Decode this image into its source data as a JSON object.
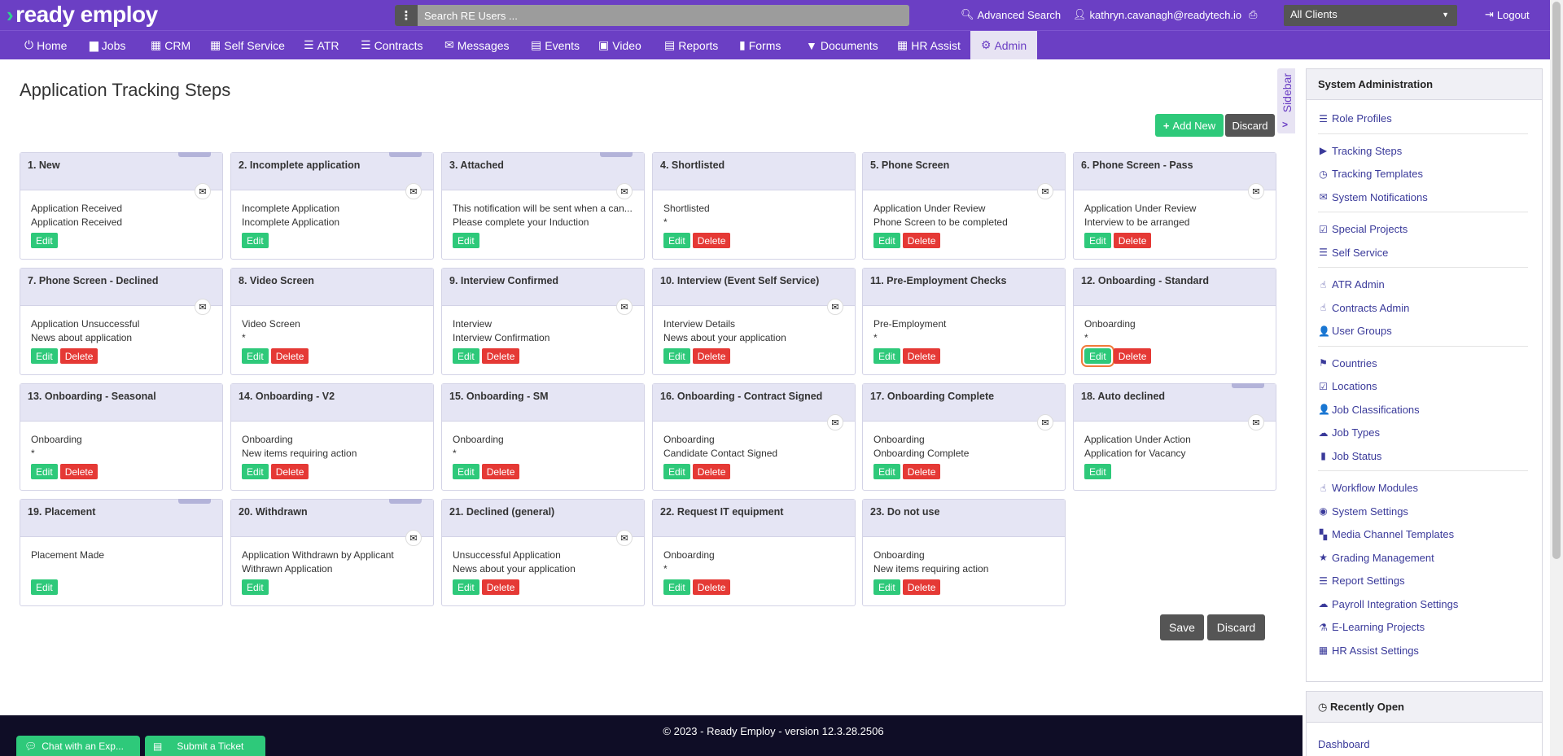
{
  "header": {
    "logo_text": "ready employ",
    "search_placeholder": "Search RE Users ...",
    "advanced_search": "Advanced Search",
    "user_email": "kathryn.cavanagh@readytech.io",
    "client_select": "All Clients",
    "logout": "Logout"
  },
  "nav": [
    {
      "label": "Home",
      "icon": "⏻"
    },
    {
      "label": "Jobs",
      "icon": "▆"
    },
    {
      "label": "CRM",
      "icon": "▦"
    },
    {
      "label": "Self Service",
      "icon": "▦"
    },
    {
      "label": "ATR",
      "icon": "☰"
    },
    {
      "label": "Contracts",
      "icon": "☰"
    },
    {
      "label": "Messages",
      "icon": "✉"
    },
    {
      "label": "Events",
      "icon": "▤"
    },
    {
      "label": "Video",
      "icon": "▣"
    },
    {
      "label": "Reports",
      "icon": "▤"
    },
    {
      "label": "Forms",
      "icon": "▮"
    },
    {
      "label": "Documents",
      "icon": "▼"
    },
    {
      "label": "HR Assist",
      "icon": "▦"
    },
    {
      "label": "Admin",
      "icon": "⚙"
    }
  ],
  "page": {
    "title": "Application Tracking Steps",
    "add_new": "Add New",
    "discard": "Discard",
    "save": "Save",
    "edit_label": "Edit",
    "delete_label": "Delete"
  },
  "steps": [
    {
      "title": "1. New",
      "line1": "Application Received",
      "line2": "Application Received",
      "tab": true,
      "mail": true,
      "delete": false
    },
    {
      "title": "2. Incomplete application",
      "line1": "Incomplete Application",
      "line2": "Incomplete Application",
      "tab": true,
      "mail": true,
      "delete": false
    },
    {
      "title": "3. Attached",
      "line1": "This notification will be sent when a can...",
      "line2": "Please complete your Induction",
      "tab": true,
      "mail": true,
      "delete": false
    },
    {
      "title": "4. Shortlisted",
      "line1": "Shortlisted",
      "line2": "*",
      "tab": false,
      "mail": false,
      "delete": true
    },
    {
      "title": "5. Phone Screen",
      "line1": "Application Under Review",
      "line2": "Phone Screen to be completed",
      "tab": false,
      "mail": true,
      "delete": true
    },
    {
      "title": "6. Phone Screen - Pass",
      "line1": "Application Under Review",
      "line2": "Interview to be arranged",
      "tab": false,
      "mail": true,
      "delete": true
    },
    {
      "title": "7. Phone Screen - Declined",
      "line1": "Application Unsuccessful",
      "line2": "News about application",
      "tab": false,
      "mail": true,
      "delete": true
    },
    {
      "title": "8. Video Screen",
      "line1": "Video Screen",
      "line2": "*",
      "tab": false,
      "mail": false,
      "delete": true
    },
    {
      "title": "9. Interview Confirmed",
      "line1": "Interview",
      "line2": "Interview Confirmation",
      "tab": false,
      "mail": true,
      "delete": true
    },
    {
      "title": "10. Interview (Event Self Service)",
      "line1": "Interview Details",
      "line2": "News about your application",
      "tab": false,
      "mail": true,
      "delete": true
    },
    {
      "title": "11. Pre-Employment Checks",
      "line1": "Pre-Employment",
      "line2": "*",
      "tab": false,
      "mail": false,
      "delete": true
    },
    {
      "title": "12. Onboarding - Standard",
      "line1": "Onboarding",
      "line2": "*",
      "tab": false,
      "mail": false,
      "delete": true,
      "focused": true
    },
    {
      "title": "13. Onboarding - Seasonal",
      "line1": "Onboarding",
      "line2": "*",
      "tab": false,
      "mail": false,
      "delete": true
    },
    {
      "title": "14. Onboarding - V2",
      "line1": "Onboarding",
      "line2": "New items requiring action",
      "tab": false,
      "mail": false,
      "delete": true
    },
    {
      "title": "15. Onboarding - SM",
      "line1": "Onboarding",
      "line2": "*",
      "tab": false,
      "mail": false,
      "delete": true
    },
    {
      "title": "16. Onboarding - Contract Signed",
      "line1": "Onboarding",
      "line2": "Candidate Contact Signed",
      "tab": false,
      "mail": true,
      "delete": true
    },
    {
      "title": "17. Onboarding Complete",
      "line1": "Onboarding",
      "line2": "Onboarding Complete",
      "tab": false,
      "mail": true,
      "delete": true
    },
    {
      "title": "18. Auto declined",
      "line1": "Application Under Action",
      "line2": "Application for Vacancy",
      "tab": true,
      "mail": true,
      "delete": false
    },
    {
      "title": "19. Placement",
      "line1": "Placement Made",
      "line2": "",
      "tab": true,
      "mail": false,
      "delete": false
    },
    {
      "title": "20. Withdrawn",
      "line1": "Application Withdrawn by Applicant",
      "line2": "Withrawn Application",
      "tab": true,
      "mail": true,
      "delete": false
    },
    {
      "title": "21. Declined (general)",
      "line1": "Unsuccessful Application",
      "line2": "News about your application",
      "tab": false,
      "mail": true,
      "delete": true
    },
    {
      "title": "22. Request IT equipment",
      "line1": "Onboarding",
      "line2": "*",
      "tab": false,
      "mail": false,
      "delete": true
    },
    {
      "title": "23. Do not use",
      "line1": "Onboarding",
      "line2": "New items requiring action",
      "tab": false,
      "mail": false,
      "delete": true
    }
  ],
  "sidebar_toggle": "Sidebar",
  "admin_panel": {
    "title": "System Administration",
    "groups": [
      [
        {
          "label": "Role Profiles",
          "icon": "☰"
        }
      ],
      [
        {
          "label": "Tracking Steps",
          "icon": "▶"
        },
        {
          "label": "Tracking Templates",
          "icon": "◷"
        },
        {
          "label": "System Notifications",
          "icon": "✉"
        }
      ],
      [
        {
          "label": "Special Projects",
          "icon": "☑"
        },
        {
          "label": "Self Service",
          "icon": "☰"
        }
      ],
      [
        {
          "label": "ATR Admin",
          "icon": "☝"
        },
        {
          "label": "Contracts Admin",
          "icon": "☝"
        },
        {
          "label": "User Groups",
          "icon": "👤"
        }
      ],
      [
        {
          "label": "Countries",
          "icon": "⚑"
        },
        {
          "label": "Locations",
          "icon": "☑"
        },
        {
          "label": "Job Classifications",
          "icon": "👤"
        },
        {
          "label": "Job Types",
          "icon": "☁"
        },
        {
          "label": "Job Status",
          "icon": "▮"
        }
      ],
      [
        {
          "label": "Workflow Modules",
          "icon": "☝"
        },
        {
          "label": "System Settings",
          "icon": "◉"
        },
        {
          "label": "Media Channel Templates",
          "icon": "▚"
        },
        {
          "label": "Grading Management",
          "icon": "★"
        },
        {
          "label": "Report Settings",
          "icon": "☰"
        },
        {
          "label": "Payroll Integration Settings",
          "icon": "☁"
        },
        {
          "label": "E-Learning Projects",
          "icon": "⚗"
        },
        {
          "label": "HR Assist Settings",
          "icon": "▦"
        }
      ]
    ]
  },
  "recent_panel": {
    "title": "Recently Open",
    "items": [
      "Dashboard"
    ]
  },
  "footer": {
    "text": "© 2023 - Ready Employ - version 12.3.28.2506",
    "chat": "Chat with an Exp...",
    "ticket": "Submit a Ticket"
  }
}
